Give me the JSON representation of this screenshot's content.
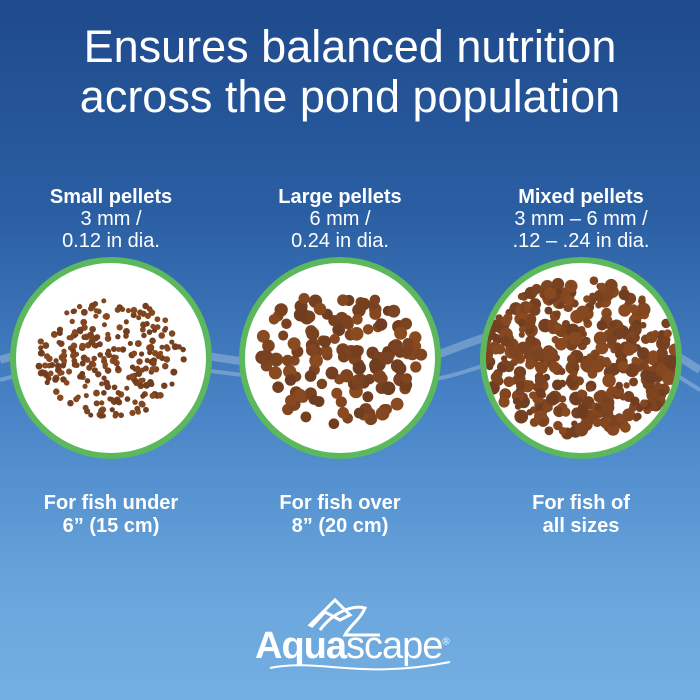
{
  "headline": {
    "line1": "Ensures balanced nutrition",
    "line2": "across the pond population"
  },
  "products": [
    {
      "title": "Small pellets",
      "size_line1": "3 mm /",
      "size_line2": "0.12 in dia.",
      "fish_line1": "For fish under",
      "fish_line2": "6” (15 cm)"
    },
    {
      "title": "Large pellets",
      "size_line1": "6 mm /",
      "size_line2": "0.24 in dia.",
      "fish_line1": "For fish over",
      "fish_line2": "8” (20 cm)"
    },
    {
      "title": "Mixed pellets",
      "size_line1": "3 mm – 6 mm /",
      "size_line2": ".12 – .24 in dia.",
      "fish_line1": "For fish of",
      "fish_line2": "all sizes"
    }
  ],
  "brand": {
    "name_bold": "Aqua",
    "name_rest": "scape",
    "registered": "®"
  },
  "colors": {
    "ring": "#5cb85c",
    "pellet": "#7a4526",
    "bg_top": "#1f4a8c",
    "bg_bottom": "#74afe2"
  }
}
